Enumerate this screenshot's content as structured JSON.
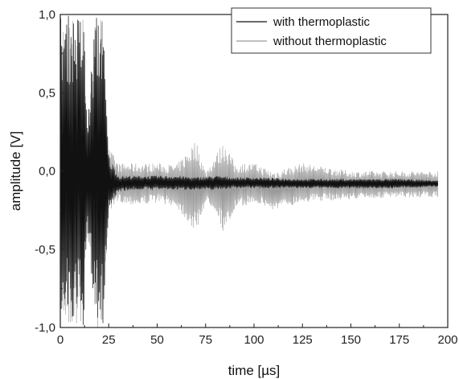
{
  "chart_data": {
    "type": "line",
    "xlabel": "time [µs]",
    "ylabel": "amplitude [V]",
    "xlim": [
      0,
      200
    ],
    "ylim": [
      -1.0,
      1.0
    ],
    "x_ticks": [
      0,
      25,
      50,
      75,
      100,
      125,
      150,
      175,
      200
    ],
    "y_ticks": [
      -1.0,
      -0.5,
      0.0,
      0.5,
      1.0
    ],
    "x_tick_labels": [
      "0",
      "25",
      "50",
      "75",
      "100",
      "125",
      "150",
      "175",
      "200"
    ],
    "y_tick_labels": [
      "-1,0",
      "-0,5",
      "0,0",
      "0,5",
      "1,0"
    ],
    "grid": false,
    "legend_position": "top-right",
    "series": [
      {
        "name": "with thermoplastic",
        "color": "#111111",
        "envelope": {
          "x": [
            0,
            12,
            14,
            18,
            22,
            25,
            30,
            40,
            50,
            60,
            70,
            80,
            90,
            100,
            125,
            150,
            175,
            195
          ],
          "upper": [
            1.0,
            1.0,
            0.3,
            1.0,
            1.0,
            0.1,
            -0.03,
            -0.03,
            -0.03,
            -0.03,
            -0.04,
            -0.03,
            -0.04,
            -0.04,
            -0.05,
            -0.05,
            -0.05,
            -0.06
          ],
          "lower": [
            -1.0,
            -1.0,
            -0.4,
            -1.0,
            -1.0,
            -0.25,
            -0.13,
            -0.12,
            -0.12,
            -0.12,
            -0.12,
            -0.12,
            -0.11,
            -0.11,
            -0.11,
            -0.11,
            -0.11,
            -0.1
          ]
        }
      },
      {
        "name": "without thermoplastic",
        "color": "#9a9a9a",
        "envelope": {
          "x": [
            0,
            12,
            14,
            18,
            22,
            25,
            30,
            40,
            50,
            60,
            70,
            75,
            80,
            85,
            90,
            100,
            110,
            125,
            150,
            175,
            195
          ],
          "upper": [
            1.0,
            1.0,
            0.3,
            1.0,
            1.0,
            0.15,
            0.05,
            0.05,
            0.05,
            0.04,
            0.2,
            0.0,
            0.1,
            0.2,
            0.05,
            0.05,
            0.0,
            0.05,
            0.0,
            0.0,
            0.0
          ],
          "lower": [
            -1.0,
            -1.0,
            -0.4,
            -1.0,
            -1.0,
            -0.3,
            -0.2,
            -0.22,
            -0.2,
            -0.23,
            -0.4,
            -0.2,
            -0.25,
            -0.42,
            -0.25,
            -0.2,
            -0.25,
            -0.2,
            -0.18,
            -0.17,
            -0.17
          ]
        }
      }
    ]
  }
}
